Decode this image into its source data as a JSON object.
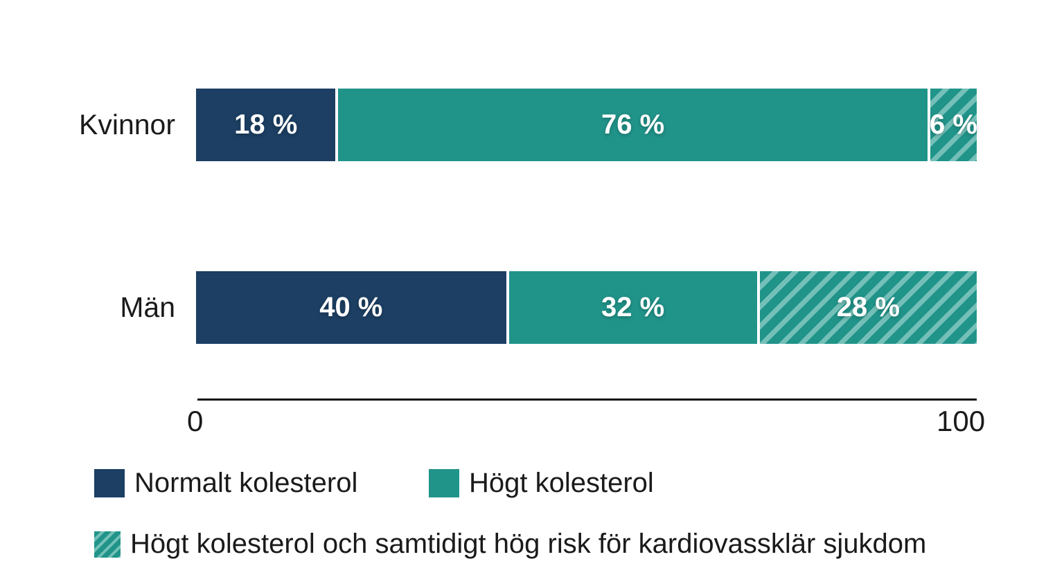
{
  "chart_data": {
    "type": "bar",
    "orientation": "horizontal",
    "stacked": true,
    "categories": [
      "Kvinnor",
      "Män"
    ],
    "series": [
      {
        "name": "Normalt kolesterol",
        "values": [
          18,
          40
        ]
      },
      {
        "name": "Högt kolesterol",
        "values": [
          76,
          32
        ]
      },
      {
        "name": "Högt kolesterol och samtidigt hög risk för kardiovassklär sjukdom",
        "values": [
          6,
          28
        ]
      }
    ],
    "value_suffix": " %",
    "xlim": [
      0,
      100
    ],
    "x_ticks": [
      "0",
      "100"
    ],
    "grid": false,
    "legend_position": "bottom",
    "title": ""
  },
  "rows": [
    {
      "label": "Kvinnor",
      "segments": [
        {
          "series": "normal",
          "value": 18,
          "label": "18 %"
        },
        {
          "series": "high",
          "value": 76,
          "label": "76 %"
        },
        {
          "series": "risk",
          "value": 6,
          "label": "6 %"
        }
      ]
    },
    {
      "label": "Män",
      "segments": [
        {
          "series": "normal",
          "value": 40,
          "label": "40 %"
        },
        {
          "series": "high",
          "value": 32,
          "label": "32 %"
        },
        {
          "series": "risk",
          "value": 28,
          "label": "28 %"
        }
      ]
    }
  ],
  "axis": {
    "min_label": "0",
    "max_label": "100"
  },
  "legend": {
    "items": [
      {
        "series": "normal",
        "label": "Normalt kolesterol"
      },
      {
        "series": "high",
        "label": "Högt kolesterol"
      },
      {
        "series": "risk",
        "label": "Högt kolesterol och samtidigt hög risk för kardiovassklär sjukdom"
      }
    ]
  },
  "colors": {
    "normal": "#1c3f63",
    "high": "#21948a",
    "risk_base": "#21948a",
    "risk_stripe": "#74c0b8",
    "text": "#1a1a1a",
    "axis": "#111111",
    "background": "#ffffff"
  }
}
